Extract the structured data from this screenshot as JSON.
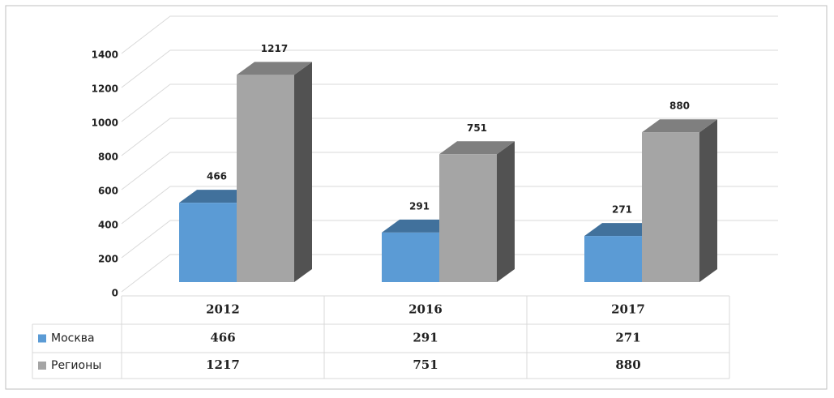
{
  "chart_data": {
    "type": "bar3d",
    "categories": [
      "2012",
      "2016",
      "2017"
    ],
    "series": [
      {
        "name": "Москва",
        "color": "#5b9bd5",
        "values": [
          466,
          291,
          271
        ]
      },
      {
        "name": "Регионы",
        "color": "#a5a5a5",
        "values": [
          1217,
          751,
          880
        ]
      }
    ],
    "ylim": [
      0,
      1400
    ],
    "yticks": [
      0,
      200,
      400,
      600,
      800,
      1000,
      1200,
      1400
    ],
    "grid": true,
    "data_table": true
  }
}
